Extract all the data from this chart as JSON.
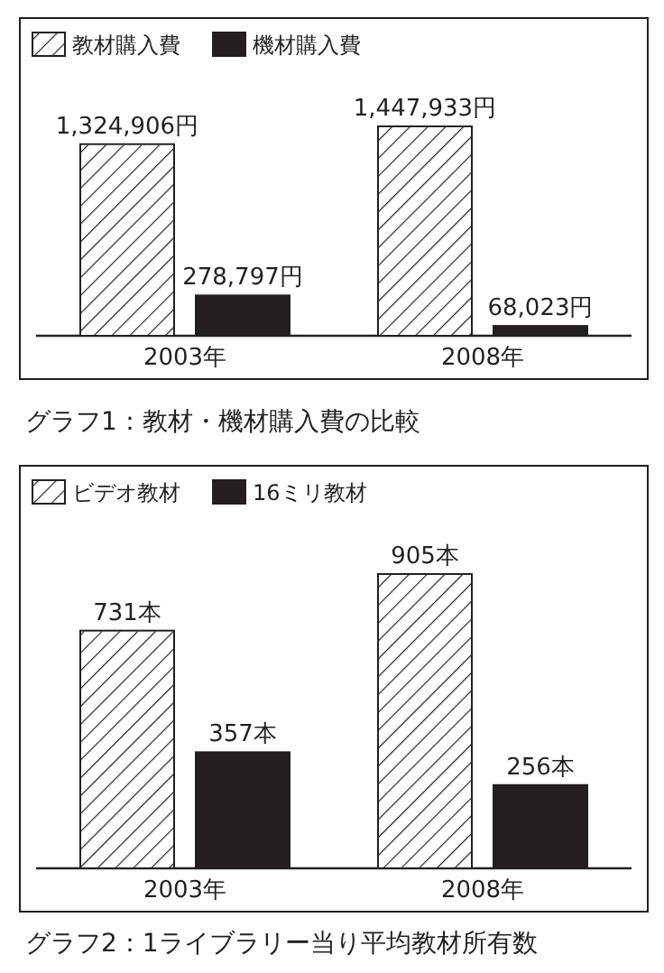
{
  "chart_data": [
    {
      "type": "bar",
      "title": "グラフ1：教材・機材購入費の比較",
      "categories": [
        "2003年",
        "2008年"
      ],
      "legend": "top left",
      "series": [
        {
          "name": "教材購入費",
          "color": "#ffffff",
          "values": [
            1324906,
            1447933
          ],
          "value_labels": [
            "1,324,906円",
            "1,447,933円"
          ]
        },
        {
          "name": "機材購入費",
          "color": "#231f20",
          "values": [
            278797,
            68023
          ],
          "value_labels": [
            "278,797円",
            "68,023円"
          ]
        }
      ]
    },
    {
      "type": "bar",
      "title": "グラフ2：1ライブラリー当り平均教材所有数",
      "categories": [
        "2003年",
        "2008年"
      ],
      "legend": "top left",
      "series": [
        {
          "name": "ビデオ教材",
          "color": "#ffffff",
          "values": [
            731,
            905
          ],
          "value_labels": [
            "731本",
            "905本"
          ]
        },
        {
          "name": "16ミリ教材",
          "color": "#231f20",
          "values": [
            357,
            256
          ],
          "value_labels": [
            "357本",
            "256本"
          ]
        }
      ]
    }
  ]
}
